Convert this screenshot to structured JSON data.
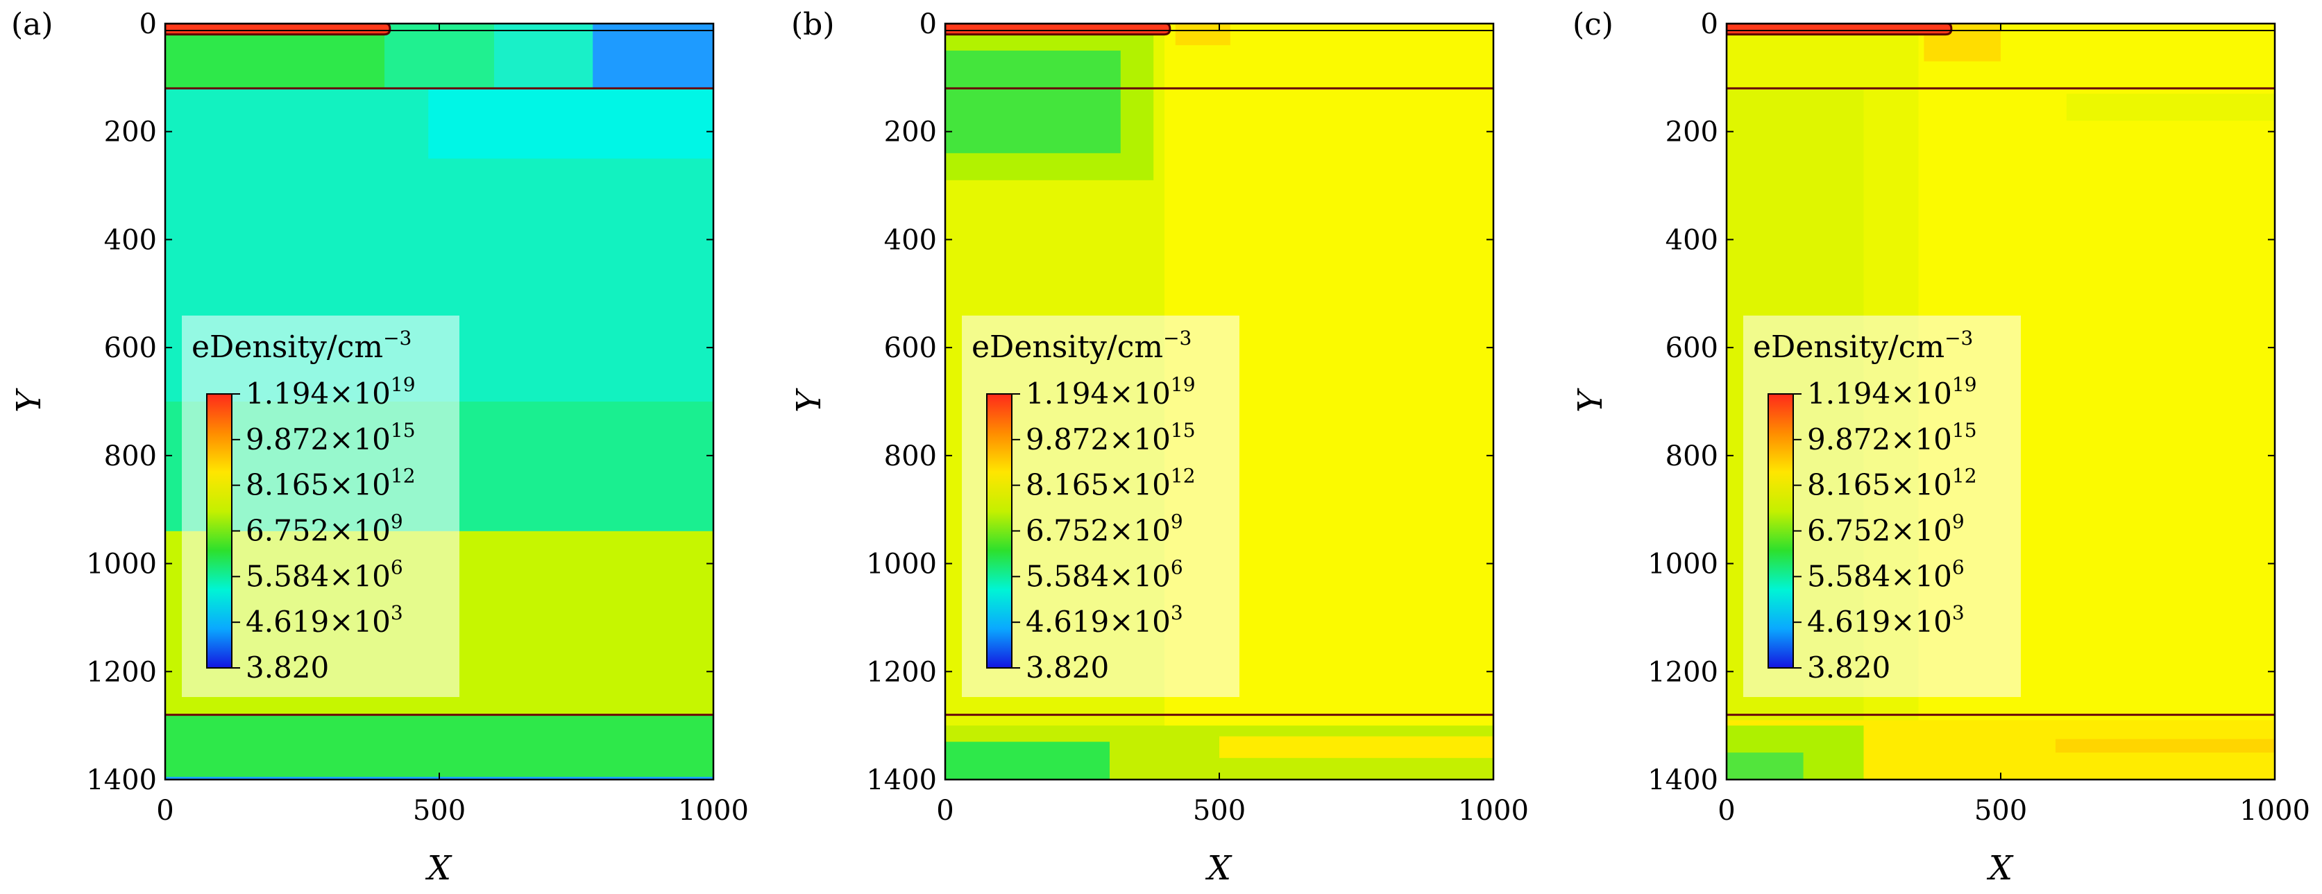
{
  "chart_data": {
    "type": "heatmap",
    "colorbar": {
      "title": "eDensity/cm",
      "title_exponent": "−3",
      "labels": [
        {
          "mantissa": "1.194",
          "times": "×",
          "base": "10",
          "exponent": "19"
        },
        {
          "mantissa": "9.872",
          "times": "×",
          "base": "10",
          "exponent": "15"
        },
        {
          "mantissa": "8.165",
          "times": "×",
          "base": "10",
          "exponent": "12"
        },
        {
          "mantissa": "6.752",
          "times": "×",
          "base": "10",
          "exponent": "9"
        },
        {
          "mantissa": "5.584",
          "times": "×",
          "base": "10",
          "exponent": "6"
        },
        {
          "mantissa": "4.619",
          "times": "×",
          "base": "10",
          "exponent": "3"
        },
        {
          "mantissa": "3.820",
          "times": "",
          "base": "",
          "exponent": ""
        }
      ],
      "colors": [
        "#ff2a1a",
        "#ff8c00",
        "#ffe600",
        "#c4f000",
        "#2de02d",
        "#00f5d5",
        "#0aa8ff",
        "#1414e0"
      ]
    },
    "panels": [
      {
        "label": "(a)",
        "xlabel": "X",
        "ylabel": "Y",
        "xlim": [
          0,
          1000
        ],
        "ylim": [
          1400,
          0
        ],
        "xticks": [
          "0",
          "500",
          "1000"
        ],
        "yticks": [
          "0",
          "200",
          "400",
          "600",
          "800",
          "1000",
          "1200",
          "1400"
        ],
        "regions": [
          {
            "x0": 0,
            "x1": 1000,
            "y0": 0,
            "y1": 120,
            "color": "#1e9bff"
          },
          {
            "x0": 0,
            "x1": 780,
            "y0": 0,
            "y1": 120,
            "color": "#19f0c8"
          },
          {
            "x0": 0,
            "x1": 600,
            "y0": 0,
            "y1": 120,
            "color": "#20f090"
          },
          {
            "x0": 0,
            "x1": 400,
            "y0": 0,
            "y1": 120,
            "color": "#2ee84a"
          },
          {
            "x0": 0,
            "x1": 1000,
            "y0": 120,
            "y1": 940,
            "color": "#12f2c0"
          },
          {
            "x0": 0,
            "x1": 1000,
            "y0": 120,
            "y1": 250,
            "color": "#00f6e6"
          },
          {
            "x0": 0,
            "x1": 480,
            "y0": 120,
            "y1": 260,
            "color": "#12f2c0"
          },
          {
            "x0": 0,
            "x1": 1000,
            "y0": 700,
            "y1": 940,
            "color": "#1aef90"
          },
          {
            "x0": 0,
            "x1": 1000,
            "y0": 940,
            "y1": 1280,
            "color": "#c6f600"
          },
          {
            "x0": 0,
            "x1": 1000,
            "y0": 1280,
            "y1": 1400,
            "color": "#2ee84a"
          },
          {
            "x0": 0,
            "x1": 1000,
            "y0": 1395,
            "y1": 1400,
            "color": "#1aa3ff"
          }
        ],
        "gate": {
          "x0": 0,
          "x1": 410,
          "y0": 0,
          "y1": 20,
          "color": "#ff3a1a"
        },
        "interfaces": [
          120,
          1280
        ]
      },
      {
        "label": "(b)",
        "xlabel": "X",
        "ylabel": "Y",
        "xlim": [
          0,
          1000
        ],
        "ylim": [
          1400,
          0
        ],
        "xticks": [
          "0",
          "500",
          "1000"
        ],
        "yticks": [
          "0",
          "200",
          "400",
          "600",
          "800",
          "1000",
          "1200",
          "1400"
        ],
        "regions": [
          {
            "x0": 0,
            "x1": 1000,
            "y0": 0,
            "y1": 1400,
            "color": "#fbfa00"
          },
          {
            "x0": 0,
            "x1": 400,
            "y0": 0,
            "y1": 1400,
            "color": "#e6f800"
          },
          {
            "x0": 0,
            "x1": 380,
            "y0": 20,
            "y1": 290,
            "color": "#b2f200"
          },
          {
            "x0": 0,
            "x1": 320,
            "y0": 50,
            "y1": 240,
            "color": "#44e53c"
          },
          {
            "x0": 420,
            "x1": 520,
            "y0": 0,
            "y1": 40,
            "color": "#ffdd00"
          },
          {
            "x0": 0,
            "x1": 1000,
            "y0": 1300,
            "y1": 1400,
            "color": "#c4f000"
          },
          {
            "x0": 0,
            "x1": 300,
            "y0": 1330,
            "y1": 1400,
            "color": "#2ee84a"
          },
          {
            "x0": 500,
            "x1": 1000,
            "y0": 1320,
            "y1": 1360,
            "color": "#ffec00"
          }
        ],
        "gate": {
          "x0": 0,
          "x1": 410,
          "y0": 0,
          "y1": 20,
          "color": "#ff3a1a"
        },
        "interfaces": [
          120,
          1280
        ]
      },
      {
        "label": "(c)",
        "xlabel": "X",
        "ylabel": "Y",
        "xlim": [
          0,
          1000
        ],
        "ylim": [
          1400,
          0
        ],
        "xticks": [
          "0",
          "500",
          "1000"
        ],
        "yticks": [
          "0",
          "200",
          "400",
          "600",
          "800",
          "1000",
          "1200",
          "1400"
        ],
        "regions": [
          {
            "x0": 0,
            "x1": 1000,
            "y0": 0,
            "y1": 1400,
            "color": "#fbfa00"
          },
          {
            "x0": 0,
            "x1": 350,
            "y0": 0,
            "y1": 1400,
            "color": "#ecf800"
          },
          {
            "x0": 0,
            "x1": 250,
            "y0": 120,
            "y1": 1300,
            "color": "#dff600"
          },
          {
            "x0": 360,
            "x1": 500,
            "y0": 0,
            "y1": 70,
            "color": "#ffdd00"
          },
          {
            "x0": 620,
            "x1": 1000,
            "y0": 130,
            "y1": 180,
            "color": "#ecf800"
          },
          {
            "x0": 0,
            "x1": 1000,
            "y0": 1290,
            "y1": 1400,
            "color": "#ffec00"
          },
          {
            "x0": 0,
            "x1": 250,
            "y0": 1300,
            "y1": 1400,
            "color": "#aef000"
          },
          {
            "x0": 0,
            "x1": 140,
            "y0": 1350,
            "y1": 1400,
            "color": "#52e53c"
          },
          {
            "x0": 600,
            "x1": 1000,
            "y0": 1325,
            "y1": 1350,
            "color": "#ffd500"
          }
        ],
        "gate": {
          "x0": 0,
          "x1": 410,
          "y0": 0,
          "y1": 20,
          "color": "#ff3a1a"
        },
        "interfaces": [
          120,
          1280
        ]
      }
    ]
  }
}
